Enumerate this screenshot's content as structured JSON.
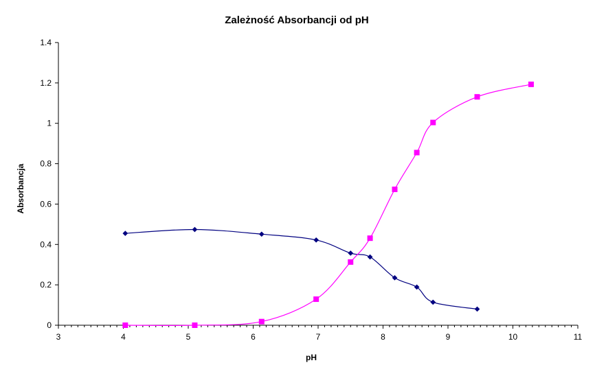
{
  "chart_data": {
    "type": "line",
    "title": "Zależność Absorbancji od pH",
    "xlabel": "pH",
    "ylabel": "Absorbancja",
    "xlim": [
      3,
      11
    ],
    "ylim": [
      0,
      1.4
    ],
    "x_ticks": [
      3,
      4,
      5,
      6,
      7,
      8,
      9,
      10,
      11
    ],
    "y_ticks": [
      0,
      0.2,
      0.4,
      0.6,
      0.8,
      1,
      1.2,
      1.4
    ],
    "grid": false,
    "legend": "none",
    "series": [
      {
        "color": "#000080",
        "marker": "diamond",
        "points": [
          [
            4.03,
            0.455
          ],
          [
            5.1,
            0.474
          ],
          [
            6.13,
            0.451
          ],
          [
            6.97,
            0.422
          ],
          [
            7.5,
            0.357
          ],
          [
            7.8,
            0.338
          ],
          [
            8.18,
            0.235
          ],
          [
            8.52,
            0.189
          ],
          [
            8.77,
            0.114
          ],
          [
            9.45,
            0.08
          ]
        ]
      },
      {
        "color": "#FF00FF",
        "marker": "square",
        "points": [
          [
            4.03,
            0.0
          ],
          [
            5.1,
            0.0
          ],
          [
            6.13,
            0.018
          ],
          [
            6.97,
            0.129
          ],
          [
            7.5,
            0.313
          ],
          [
            7.8,
            0.431
          ],
          [
            8.18,
            0.673
          ],
          [
            8.52,
            0.855
          ],
          [
            8.77,
            1.004
          ],
          [
            9.45,
            1.131
          ],
          [
            10.28,
            1.193
          ]
        ]
      }
    ]
  }
}
